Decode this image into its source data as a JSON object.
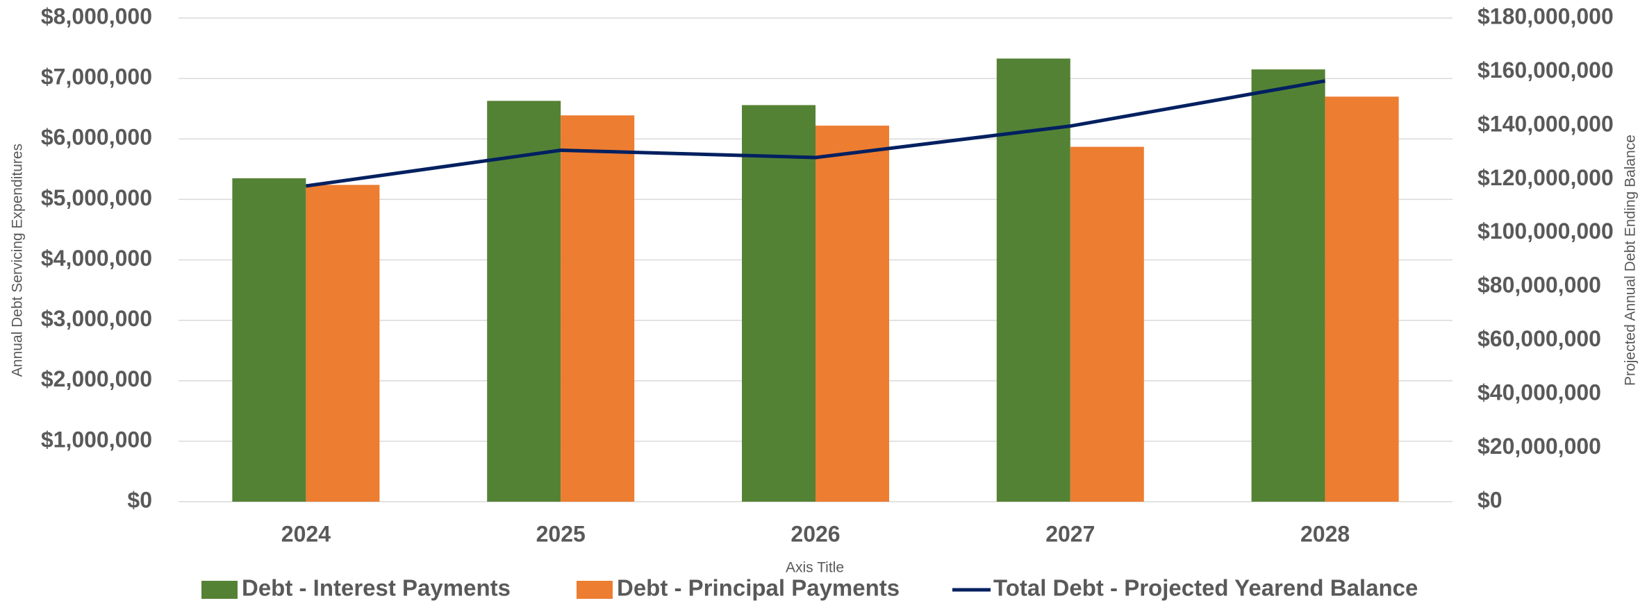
{
  "chart_data": {
    "type": "bar",
    "categories": [
      "2024",
      "2025",
      "2026",
      "2027",
      "2028"
    ],
    "x_label": "Axis Title",
    "y_label": "Annual Debt Servicing Expenditures",
    "y2_label": "Projected Annual  Debt Ending Balance",
    "series": [
      {
        "name": "Debt - Interest Payments",
        "type": "bar",
        "color": "#548235",
        "values": [
          5350000,
          6630000,
          6560000,
          7330000,
          7150000
        ]
      },
      {
        "name": "Debt - Principal Payments",
        "type": "bar",
        "color": "#ED7D31",
        "values": [
          5240000,
          6390000,
          6220000,
          5870000,
          6700000
        ]
      },
      {
        "name": "Total Debt - Projected Yearend Balance",
        "type": "line",
        "axis": "y2",
        "color": "#002060",
        "values": [
          117500000,
          130800000,
          128100000,
          139800000,
          156600000
        ]
      }
    ],
    "ylim": [
      0,
      8000000
    ],
    "yticks": [
      {
        "value": 0,
        "label": "$0"
      },
      {
        "value": 1000000,
        "label": "$1,000,000"
      },
      {
        "value": 2000000,
        "label": "$2,000,000"
      },
      {
        "value": 3000000,
        "label": "$3,000,000"
      },
      {
        "value": 4000000,
        "label": "$4,000,000"
      },
      {
        "value": 5000000,
        "label": "$5,000,000"
      },
      {
        "value": 6000000,
        "label": "$6,000,000"
      },
      {
        "value": 7000000,
        "label": "$7,000,000"
      },
      {
        "value": 8000000,
        "label": "$8,000,000"
      }
    ],
    "y2lim": [
      0,
      180000000
    ],
    "y2ticks": [
      {
        "value": 0,
        "label": "$0"
      },
      {
        "value": 20000000,
        "label": "$20,000,000"
      },
      {
        "value": 40000000,
        "label": "$40,000,000"
      },
      {
        "value": 60000000,
        "label": "$60,000,000"
      },
      {
        "value": 80000000,
        "label": "$80,000,000"
      },
      {
        "value": 100000000,
        "label": "$100,000,000"
      },
      {
        "value": 120000000,
        "label": "$120,000,000"
      },
      {
        "value": 140000000,
        "label": "$140,000,000"
      },
      {
        "value": 160000000,
        "label": "$160,000,000"
      },
      {
        "value": 180000000,
        "label": "$180,000,000"
      }
    ],
    "grid": true,
    "legend": "bottom"
  }
}
